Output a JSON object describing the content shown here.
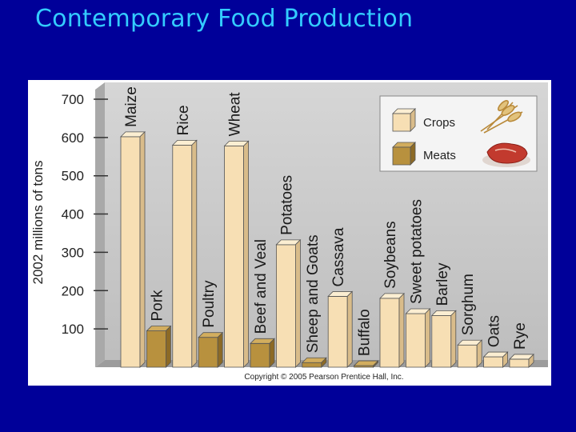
{
  "slide": {
    "title": "Contemporary Food Production"
  },
  "figure": {
    "copyright": "Copyright © 2005 Pearson Prentice Hall, Inc."
  },
  "legend": {
    "items": [
      {
        "label": "Crops",
        "color": "#f7dfb4"
      },
      {
        "label": "Meats",
        "color": "#b8913e"
      }
    ]
  },
  "chart_data": {
    "type": "bar",
    "title": "",
    "ylabel": "2002 millions of tons",
    "ylim": [
      0,
      725
    ],
    "yticks": [
      100,
      200,
      300,
      400,
      500,
      600,
      700
    ],
    "legend_position": "top-right",
    "categories": [
      "Maize",
      "Pork",
      "Rice",
      "Poultry",
      "Wheat",
      "Beef and Veal",
      "Potatoes",
      "Sheep and Goats",
      "Cassava",
      "Buffalo",
      "Soybeans",
      "Sweet potatoes",
      "Barley",
      "Sorghum",
      "Oats",
      "Rye"
    ],
    "series_by_bar": [
      "Crops",
      "Meats",
      "Crops",
      "Meats",
      "Crops",
      "Meats",
      "Crops",
      "Meats",
      "Crops",
      "Meats",
      "Crops",
      "Crops",
      "Crops",
      "Crops",
      "Crops",
      "Crops"
    ],
    "values": [
      602,
      95,
      580,
      78,
      578,
      62,
      320,
      12,
      185,
      4,
      180,
      140,
      135,
      58,
      27,
      21
    ]
  }
}
